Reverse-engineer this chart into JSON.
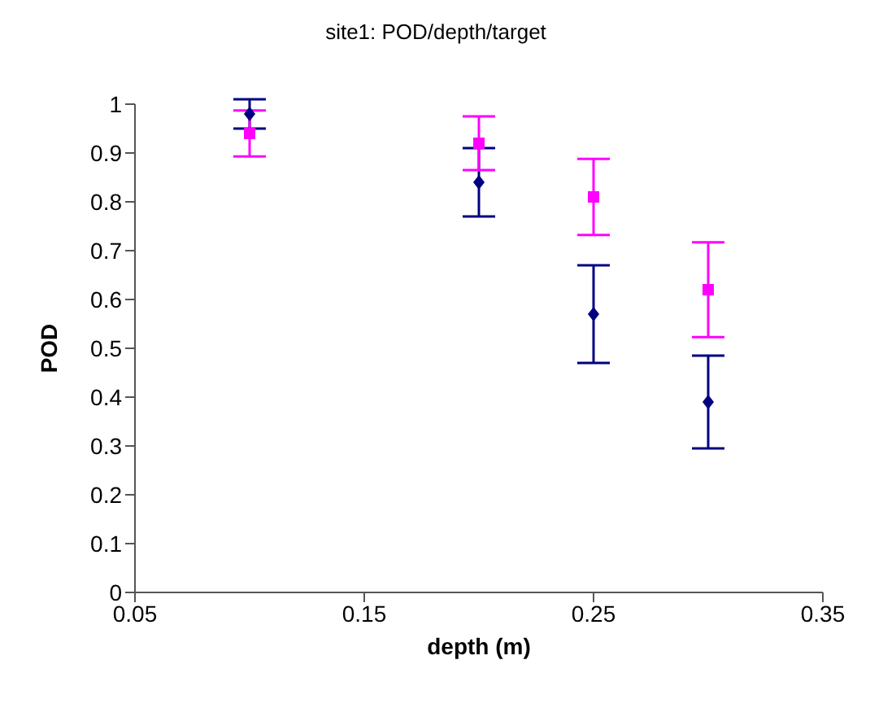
{
  "chart_data": {
    "type": "scatter",
    "title": "site1: POD/depth/target",
    "xlabel": "depth (m)",
    "ylabel": "POD",
    "xlim": [
      0.05,
      0.35
    ],
    "xticks": [
      0.05,
      0.15,
      0.25,
      0.35
    ],
    "ylim": [
      0,
      1
    ],
    "yticks": [
      0,
      0.1,
      0.2,
      0.3,
      0.4,
      0.5,
      0.6,
      0.7,
      0.8,
      0.9,
      1
    ],
    "grid": false,
    "legend": false,
    "x": [
      0.1,
      0.2,
      0.25,
      0.3
    ],
    "series": [
      {
        "color": "#000080",
        "marker": "diamond",
        "values": [
          0.98,
          0.84,
          0.57,
          0.39
        ],
        "errors": [
          0.03,
          0.07,
          0.1,
          0.095
        ]
      },
      {
        "color": "#ff00ff",
        "marker": "square",
        "values": [
          0.94,
          0.92,
          0.81,
          0.62
        ],
        "errors": [
          0.047,
          0.055,
          0.078,
          0.097
        ]
      }
    ]
  }
}
